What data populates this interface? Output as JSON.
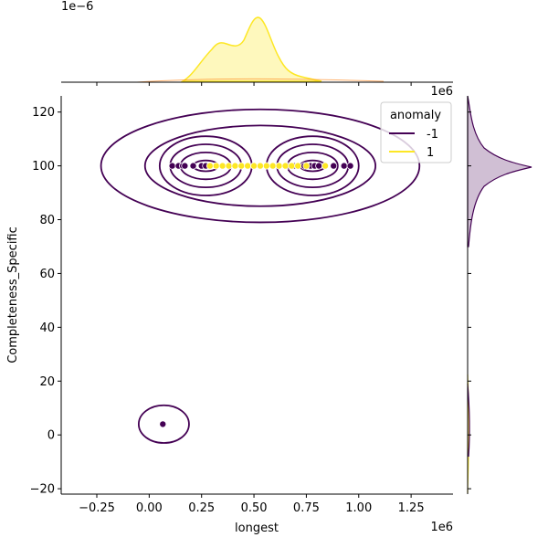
{
  "chart_data": {
    "type": "scatter",
    "subtype": "jointplot-kde-scatter",
    "xlabel": "longest",
    "ylabel": "Completeness_Specific",
    "x_offset_label": "1e6",
    "y_offset_label": "1e6",
    "top_marginal_offset_label": "1e−6",
    "xlim": [
      -0.42,
      1.45
    ],
    "ylim": [
      -22,
      126
    ],
    "x_ticks": [
      {
        "value": -0.25,
        "label": "−0.25"
      },
      {
        "value": 0.0,
        "label": "0.00"
      },
      {
        "value": 0.25,
        "label": "0.25"
      },
      {
        "value": 0.5,
        "label": "0.50"
      },
      {
        "value": 0.75,
        "label": "0.75"
      },
      {
        "value": 1.0,
        "label": "1.00"
      },
      {
        "value": 1.25,
        "label": "1.25"
      }
    ],
    "y_ticks": [
      {
        "value": -20,
        "label": "−20"
      },
      {
        "value": 0,
        "label": "0"
      },
      {
        "value": 20,
        "label": "20"
      },
      {
        "value": 40,
        "label": "40"
      },
      {
        "value": 60,
        "label": "60"
      },
      {
        "value": 80,
        "label": "80"
      },
      {
        "value": 100,
        "label": "100"
      },
      {
        "value": 120,
        "label": "120"
      }
    ],
    "grid": false,
    "legend": {
      "title": "anomaly",
      "placement": "top-right",
      "entries": [
        {
          "label": "-1",
          "color": "#440154"
        },
        {
          "label": "1",
          "color": "#fde725"
        }
      ]
    },
    "series": [
      {
        "name": "-1",
        "color": "#440154",
        "x": [
          0.065,
          0.11,
          0.14,
          0.16,
          0.17,
          0.21,
          0.25,
          0.27,
          0.66,
          0.69,
          0.74,
          0.77,
          0.79,
          0.81,
          0.88,
          0.93,
          0.96
        ],
        "y": [
          4,
          100,
          100,
          100,
          100,
          100,
          100,
          100,
          100,
          100,
          100,
          100,
          100,
          100,
          100,
          100,
          100
        ]
      },
      {
        "name": "1",
        "color": "#fde725",
        "x": [
          0.29,
          0.32,
          0.35,
          0.38,
          0.41,
          0.44,
          0.47,
          0.5,
          0.53,
          0.56,
          0.59,
          0.62,
          0.65,
          0.68,
          0.71,
          0.75,
          0.84
        ],
        "y": [
          100,
          100,
          100,
          100,
          100,
          100,
          100,
          100,
          100,
          100,
          100,
          100,
          100,
          100,
          100,
          100,
          100
        ]
      }
    ],
    "kde_contours": {
      "series": "-1",
      "color": "#440154",
      "lobes": [
        {
          "center": [
            0.27,
            100
          ],
          "x_radius": [
            0.06,
            0.12,
            0.17,
            0.22
          ],
          "y_radius": [
            2,
            5,
            8,
            11
          ]
        },
        {
          "center": [
            0.78,
            100
          ],
          "x_radius": [
            0.06,
            0.12,
            0.17,
            0.22
          ],
          "y_radius": [
            2,
            5,
            8,
            11
          ]
        }
      ],
      "outer_rings": [
        {
          "center": [
            0.53,
            100
          ],
          "x_radius": 0.76,
          "y_radius": 21
        },
        {
          "center": [
            0.53,
            100
          ],
          "x_radius": 0.55,
          "y_radius": 15
        }
      ],
      "small_ring": {
        "center": [
          0.07,
          4
        ],
        "x_radius": 0.12,
        "y_radius": 7
      }
    }
  }
}
